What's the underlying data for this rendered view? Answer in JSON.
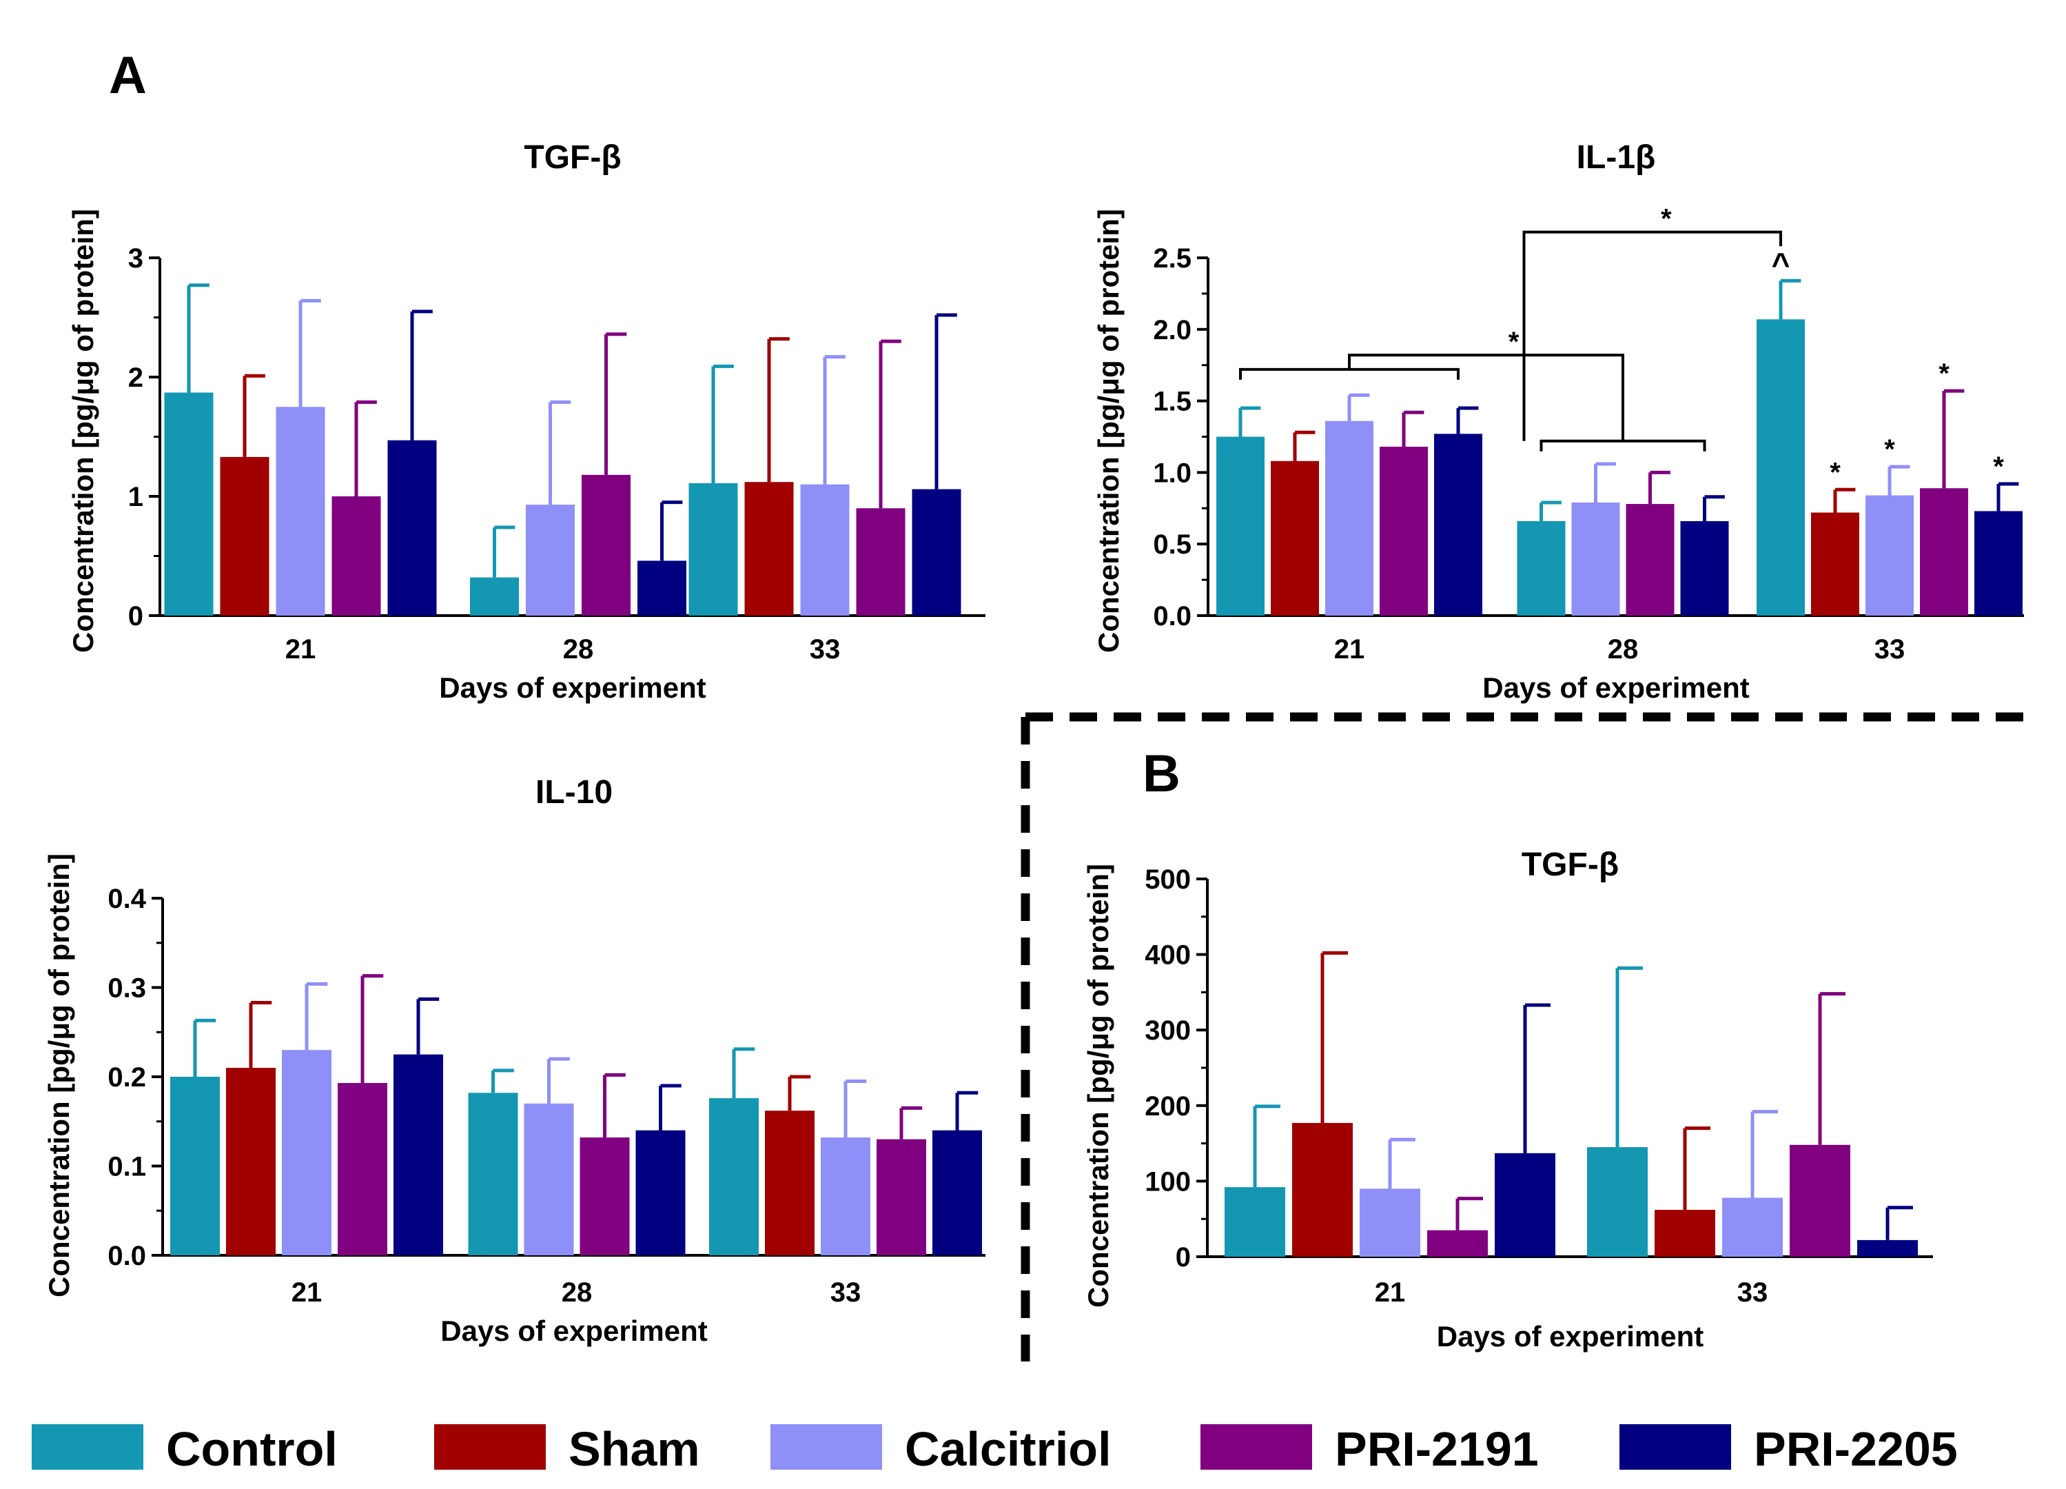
{
  "panel_labels": {
    "a": "A",
    "b": "B"
  },
  "colors": {
    "Control": "#1497b2",
    "Sham": "#a00000",
    "Calcitriol": "#8f8ff8",
    "PRI-2191": "#800080",
    "PRI-2205": "#000080",
    "axis": "#000000",
    "background": "#ffffff"
  },
  "legend": [
    {
      "label": "Control",
      "color": "#1497b2"
    },
    {
      "label": "Sham",
      "color": "#a00000"
    },
    {
      "label": "Calcitriol",
      "color": "#8f8ff8"
    },
    {
      "label": "PRI-2191",
      "color": "#800080"
    },
    {
      "label": "PRI-2205",
      "color": "#000080"
    }
  ],
  "chart_data": [
    {
      "id": "a-tgf",
      "panel": "A",
      "type": "bar",
      "title": "TGF-β",
      "xlabel": "Days of experiment",
      "ylabel": "Concentration [pg/μg of protein]",
      "ylim": [
        0,
        3
      ],
      "yticks": [
        "0",
        "1",
        "2",
        "3"
      ],
      "categories": [
        "21",
        "28",
        "33"
      ],
      "series": [
        {
          "name": "Control",
          "values": [
            1.87,
            0.32,
            1.11
          ],
          "errors": [
            0.9,
            0.42,
            0.98
          ]
        },
        {
          "name": "Sham",
          "values": [
            1.33,
            null,
            1.12
          ],
          "errors": [
            0.68,
            null,
            1.2
          ]
        },
        {
          "name": "Calcitriol",
          "values": [
            1.75,
            0.93,
            1.1
          ],
          "errors": [
            0.89,
            0.86,
            1.07
          ]
        },
        {
          "name": "PRI-2191",
          "values": [
            1.0,
            1.18,
            0.9
          ],
          "errors": [
            0.79,
            1.18,
            1.4
          ]
        },
        {
          "name": "PRI-2205",
          "values": [
            1.47,
            0.46,
            1.06
          ],
          "errors": [
            1.08,
            0.49,
            1.46
          ]
        }
      ]
    },
    {
      "id": "a-il1b",
      "panel": "A",
      "type": "bar",
      "title": "IL-1β",
      "xlabel": "Days of experiment",
      "ylabel": "Concentration [pg/μg of protein]",
      "ylim": [
        0,
        2.5
      ],
      "yticks": [
        "0.0",
        "0.5",
        "1.0",
        "1.5",
        "2.0",
        "2.5"
      ],
      "categories": [
        "21",
        "28",
        "33"
      ],
      "series": [
        {
          "name": "Control",
          "values": [
            1.25,
            0.66,
            2.07
          ],
          "errors": [
            0.2,
            0.13,
            0.27
          ]
        },
        {
          "name": "Sham",
          "values": [
            1.08,
            null,
            0.72
          ],
          "errors": [
            0.2,
            null,
            0.16
          ]
        },
        {
          "name": "Calcitriol",
          "values": [
            1.36,
            0.79,
            0.84
          ],
          "errors": [
            0.18,
            0.27,
            0.2
          ]
        },
        {
          "name": "PRI-2191",
          "values": [
            1.18,
            0.78,
            0.89
          ],
          "errors": [
            0.24,
            0.22,
            0.68
          ]
        },
        {
          "name": "PRI-2205",
          "values": [
            1.27,
            0.66,
            0.73
          ],
          "errors": [
            0.18,
            0.17,
            0.19
          ]
        }
      ],
      "annotations": {
        "caret_symbol": "^",
        "star_symbol": "*",
        "caret_on": "Control @ 33",
        "stars_on": [
          "Sham @ 33",
          "Calcitriol @ 33",
          "PRI-2191 @ 33",
          "PRI-2205 @ 33"
        ],
        "brackets": [
          "day 21 group vs day 28 group: *",
          "day 28 group vs Control @ 33: *"
        ]
      }
    },
    {
      "id": "a-il10",
      "panel": "A",
      "type": "bar",
      "title": "IL-10",
      "xlabel": "Days of experiment",
      "ylabel": "Concentration [pg/μg of protein]",
      "ylim": [
        0,
        0.4
      ],
      "yticks": [
        "0.0",
        "0.1",
        "0.2",
        "0.3",
        "0.4"
      ],
      "categories": [
        "21",
        "28",
        "33"
      ],
      "series": [
        {
          "name": "Control",
          "values": [
            0.2,
            0.182,
            0.176
          ],
          "errors": [
            0.063,
            0.025,
            0.055
          ]
        },
        {
          "name": "Sham",
          "values": [
            0.21,
            null,
            0.162
          ],
          "errors": [
            0.073,
            null,
            0.038
          ]
        },
        {
          "name": "Calcitriol",
          "values": [
            0.23,
            0.17,
            0.132
          ],
          "errors": [
            0.074,
            0.05,
            0.063
          ]
        },
        {
          "name": "PRI-2191",
          "values": [
            0.193,
            0.132,
            0.13
          ],
          "errors": [
            0.12,
            0.07,
            0.035
          ]
        },
        {
          "name": "PRI-2205",
          "values": [
            0.225,
            0.14,
            0.14
          ],
          "errors": [
            0.062,
            0.05,
            0.042
          ]
        }
      ]
    },
    {
      "id": "b-tgf",
      "panel": "B",
      "type": "bar",
      "title": "TGF-β",
      "xlabel": "Days of experiment",
      "ylabel": "Concentration [pg/μg of protein]",
      "ylim": [
        0,
        500
      ],
      "yticks": [
        "0",
        "100",
        "200",
        "300",
        "400",
        "500"
      ],
      "categories": [
        "21",
        "33"
      ],
      "series": [
        {
          "name": "Control",
          "values": [
            92,
            145
          ],
          "errors": [
            107,
            237
          ]
        },
        {
          "name": "Sham",
          "values": [
            177,
            62
          ],
          "errors": [
            225,
            108
          ]
        },
        {
          "name": "Calcitriol",
          "values": [
            90,
            78
          ],
          "errors": [
            65,
            114
          ]
        },
        {
          "name": "PRI-2191",
          "values": [
            35,
            148
          ],
          "errors": [
            42,
            200
          ]
        },
        {
          "name": "PRI-2205",
          "values": [
            137,
            22
          ],
          "errors": [
            196,
            43
          ]
        }
      ]
    }
  ]
}
